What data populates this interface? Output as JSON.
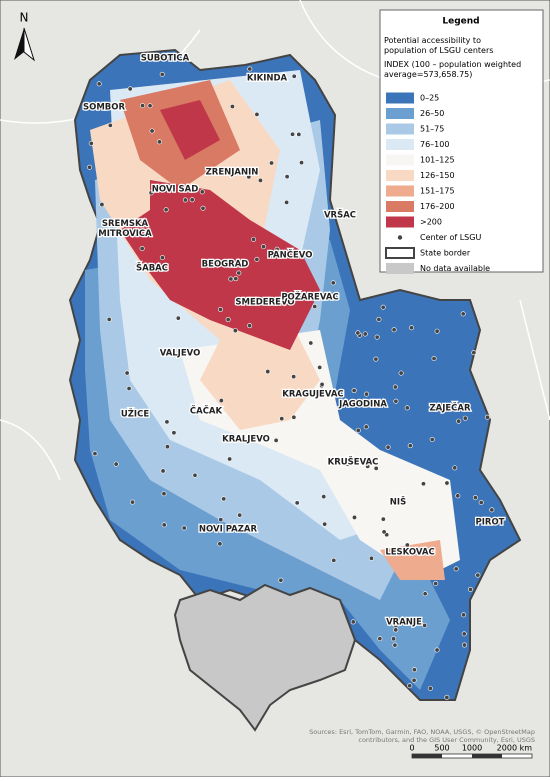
{
  "north_arrow": "N",
  "legend": {
    "title": "Legend",
    "subtitle": "Potential accessibility to population of LSGU centers",
    "index_label": "INDEX (100 – population weighted average=573,658.75)",
    "classes": [
      {
        "label": "0–25",
        "color": "#3b74b9"
      },
      {
        "label": "26–50",
        "color": "#6a9fd0"
      },
      {
        "label": "51–75",
        "color": "#a9c9e6"
      },
      {
        "label": "76–100",
        "color": "#dbe9f5"
      },
      {
        "label": "101–125",
        "color": "#f8f6f2"
      },
      {
        "label": "126–150",
        "color": "#f8d9c4"
      },
      {
        "label": "151–175",
        "color": "#eeab8e"
      },
      {
        "label": "176–200",
        "color": "#d97a64"
      },
      {
        "label": ">200",
        "color": "#c0374a"
      }
    ],
    "center_label": "Center of LSGU",
    "border_label": "State border",
    "no_data_label": "No data available"
  },
  "cities": [
    "SUBOTICA",
    "SOMBOR",
    "KIKINDA",
    "ZRENJANIN",
    "NOVI SAD",
    "SREMSKA MITROVICA",
    "VRŠAC",
    "ŠABAC",
    "BEOGRAD",
    "PANČEVO",
    "SMEDEREVO",
    "POŽAREVAC",
    "VALJEVO",
    "KRAGUJEVAC",
    "JAGODINA",
    "ZAJEČAR",
    "UŽICE",
    "ČAČAK",
    "KRALJEVO",
    "KRUŠEVAC",
    "NIŠ",
    "PIROT",
    "NOVI PAZAR",
    "LESKOVAC",
    "VRANJE"
  ],
  "scale": {
    "labels": [
      "0",
      "500",
      "1000",
      "2000 km"
    ]
  },
  "sources": "Sources: Esri, TomTom, Garmin, FAO, NOAA, USGS, © OpenStreetMap contributors, and the GIS User Community, Esri, USGS"
}
